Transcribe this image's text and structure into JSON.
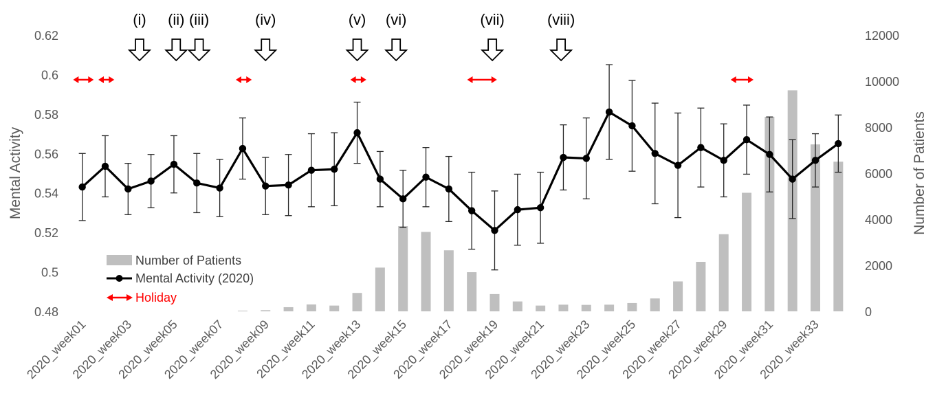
{
  "chart_data": {
    "type": "bar+line",
    "x": [
      "2020_week01",
      "2020_week02",
      "2020_week03",
      "2020_week04",
      "2020_week05",
      "2020_week06",
      "2020_week07",
      "2020_week08",
      "2020_week09",
      "2020_week10",
      "2020_week11",
      "2020_week12",
      "2020_week13",
      "2020_week14",
      "2020_week15",
      "2020_week16",
      "2020_week17",
      "2020_week18",
      "2020_week19",
      "2020_week20",
      "2020_week21",
      "2020_week22",
      "2020_week23",
      "2020_week24",
      "2020_week25",
      "2020_week26",
      "2020_week27",
      "2020_week28",
      "2020_week29",
      "2020_week30",
      "2020_week31",
      "2020_week32",
      "2020_week33",
      "2020_week34"
    ],
    "x_tick_labels": [
      "2020_week01",
      "2020_week03",
      "2020_week05",
      "2020_week07",
      "2020_week09",
      "2020_week11",
      "2020_week13",
      "2020_week15",
      "2020_week17",
      "2020_week19",
      "2020_week21",
      "2020_week23",
      "2020_week25",
      "2020_week27",
      "2020_week29",
      "2020_week31",
      "2020_week33"
    ],
    "ylabel": "Mental Activity",
    "y2label": "Number of Patients",
    "ylim": [
      0.48,
      0.62
    ],
    "y2lim": [
      0,
      12000
    ],
    "y_ticks": [
      "0.48",
      "0.5",
      "0.52",
      "0.54",
      "0.56",
      "0.58",
      "0.6",
      "0.62"
    ],
    "y2_ticks": [
      "0",
      "2000",
      "4000",
      "6000",
      "8000",
      "10000",
      "12000"
    ],
    "grid": false,
    "series": [
      {
        "name": "Number of Patients",
        "type": "bar",
        "axis": "right",
        "color": "#bfbfbf",
        "values": [
          0,
          0,
          0,
          0,
          0,
          0,
          0,
          30,
          50,
          180,
          300,
          250,
          800,
          1900,
          3700,
          3450,
          2650,
          1700,
          750,
          430,
          250,
          290,
          280,
          290,
          360,
          560,
          1300,
          2150,
          3350,
          5150,
          8450,
          9600,
          7250,
          6500
        ]
      },
      {
        "name": "Mental Activity (2020)",
        "type": "line",
        "axis": "left",
        "color": "#000000",
        "values": [
          0.543,
          0.5535,
          0.542,
          0.546,
          0.5545,
          0.545,
          0.5425,
          0.5625,
          0.5435,
          0.544,
          0.5515,
          0.552,
          0.5705,
          0.547,
          0.537,
          0.548,
          0.542,
          0.531,
          0.521,
          0.5315,
          0.5325,
          0.558,
          0.5575,
          0.581,
          0.574,
          0.56,
          0.554,
          0.563,
          0.5565,
          0.567,
          0.5595,
          0.547,
          0.5565,
          0.565
        ],
        "error": [
          0.017,
          0.0155,
          0.013,
          0.0135,
          0.0145,
          0.015,
          0.0145,
          0.0155,
          0.0145,
          0.0155,
          0.0185,
          0.0185,
          0.0155,
          0.014,
          0.0145,
          0.015,
          0.0165,
          0.0195,
          0.02,
          0.018,
          0.018,
          0.0165,
          0.0205,
          0.024,
          0.023,
          0.0255,
          0.0265,
          0.02,
          0.0185,
          0.0175,
          0.019,
          0.02,
          0.0135,
          0.0145
        ]
      }
    ],
    "annotations": [
      {
        "label": "(i)",
        "week": 3.5
      },
      {
        "label": "(ii)",
        "week": 5.1
      },
      {
        "label": "(iii)",
        "week": 6.1
      },
      {
        "label": "(iv)",
        "week": 9.0
      },
      {
        "label": "(v)",
        "week": 13.0
      },
      {
        "label": "(vi)",
        "week": 14.7
      },
      {
        "label": "(vii)",
        "week": 18.9
      },
      {
        "label": "(viii)",
        "week": 21.9
      }
    ],
    "holidays": [
      {
        "start": 0.6,
        "end": 1.5
      },
      {
        "start": 1.7,
        "end": 2.4
      },
      {
        "start": 7.7,
        "end": 8.4
      },
      {
        "start": 12.7,
        "end": 13.4
      },
      {
        "start": 17.8,
        "end": 19.1
      },
      {
        "start": 29.3,
        "end": 30.3
      }
    ],
    "legend": {
      "position": "bottom-left",
      "bar_label": "Number of Patients",
      "line_label": "Mental Activity (2020)",
      "holiday_label": "Holiday",
      "holiday_color": "#ff0000"
    }
  }
}
